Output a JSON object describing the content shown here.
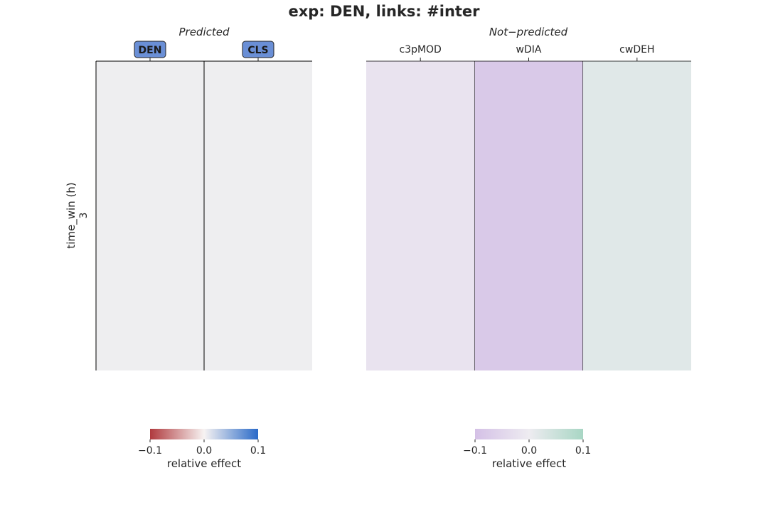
{
  "chart_data": [
    {
      "type": "heatmap",
      "title": "exp: DEN, links: #inter",
      "subtitle": "Predicted",
      "columns": [
        "DEN",
        "CLS"
      ],
      "rows": [
        "3"
      ],
      "ylabel": "time_win (h)",
      "values": [
        [
          0.0,
          0.0
        ]
      ],
      "highlighted_columns": [
        "DEN",
        "CLS"
      ],
      "badge_color": "#6a8fd6",
      "colorbar": {
        "label": "relative effect",
        "range": [
          -0.1,
          0.1
        ],
        "ticks": [
          "−0.1",
          "0.0",
          "0.1"
        ],
        "colors": [
          "#b03a3e",
          "#f7f3f2",
          "#2a6ac8"
        ]
      }
    },
    {
      "type": "heatmap",
      "subtitle": "Not−predicted",
      "columns": [
        "c3pMOD",
        "wDIA",
        "cwDEH"
      ],
      "rows": [
        "3"
      ],
      "values": [
        [
          -0.02,
          -0.08,
          0.02
        ]
      ],
      "colorbar": {
        "label": "relative effect",
        "range": [
          -0.1,
          0.1
        ],
        "ticks": [
          "−0.1",
          "0.0",
          "0.1"
        ],
        "colors": [
          "#d4c0e6",
          "#eeecf1",
          "#a8d6c4"
        ]
      }
    }
  ]
}
